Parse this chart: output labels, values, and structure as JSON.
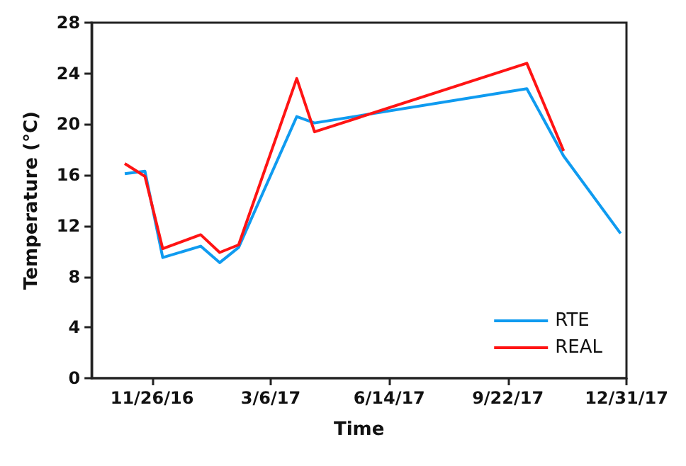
{
  "chart_data": {
    "type": "line",
    "xlabel": "Time",
    "ylabel": "Temperature (°C)",
    "x": [
      "2016-11-03",
      "2016-11-20",
      "2016-12-05",
      "2017-01-06",
      "2017-01-22",
      "2017-02-07",
      "2017-03-28",
      "2017-04-12",
      "2017-10-08",
      "2017-11-08",
      "2017-12-26"
    ],
    "series": [
      {
        "name": "RTE",
        "color": "#0f9bf0",
        "values": [
          16.1,
          16.3,
          9.5,
          10.4,
          9.1,
          10.3,
          20.6,
          20.1,
          22.8,
          17.5,
          11.4
        ]
      },
      {
        "name": "REAL",
        "color": "#ff1414",
        "values": [
          16.9,
          15.9,
          10.2,
          11.3,
          9.9,
          10.5,
          23.6,
          19.4,
          24.8,
          17.9,
          null
        ]
      }
    ],
    "xlim": [
      "2016-10-06",
      "2017-12-31"
    ],
    "xticks": [
      {
        "value": "2016-11-26",
        "label": "11/26/16"
      },
      {
        "value": "2017-03-06",
        "label": "3/6/17"
      },
      {
        "value": "2017-06-14",
        "label": "6/14/17"
      },
      {
        "value": "2017-09-22",
        "label": "9/22/17"
      },
      {
        "value": "2017-12-31",
        "label": "12/31/17"
      }
    ],
    "ylim": [
      0,
      28
    ],
    "yticks": [
      0,
      4,
      8,
      12,
      16,
      20,
      24,
      28
    ],
    "grid": false,
    "legend": "bottom right"
  }
}
